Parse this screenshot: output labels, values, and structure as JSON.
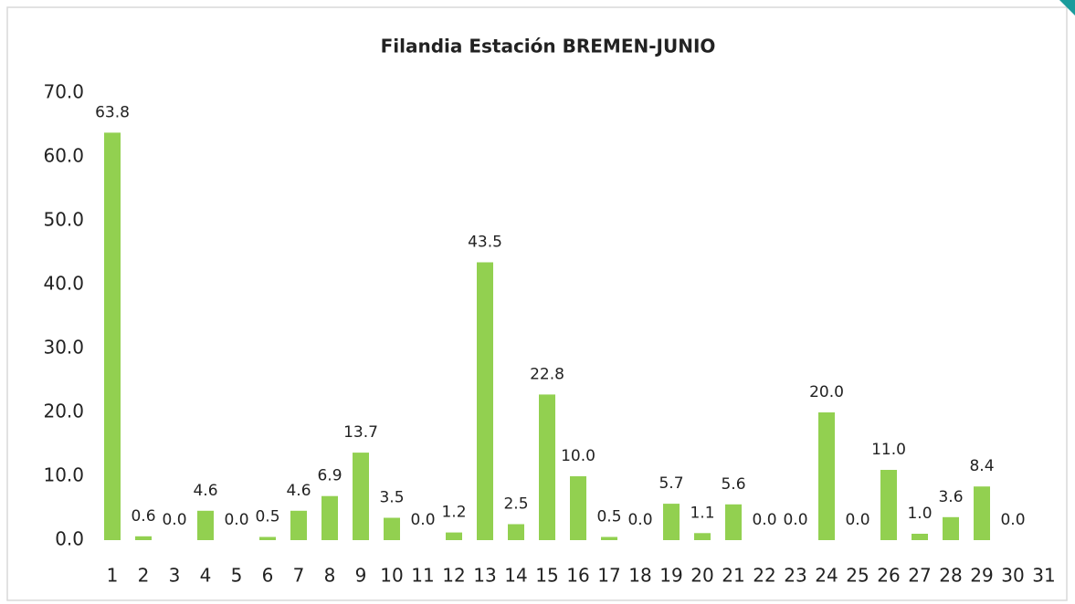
{
  "chart_data": {
    "type": "bar",
    "title": "Filandia Estación BREMEN-JUNIO",
    "categories": [
      "1",
      "2",
      "3",
      "4",
      "5",
      "6",
      "7",
      "8",
      "9",
      "10",
      "11",
      "12",
      "13",
      "14",
      "15",
      "16",
      "17",
      "18",
      "19",
      "20",
      "21",
      "22",
      "23",
      "24",
      "25",
      "26",
      "27",
      "28",
      "29",
      "30",
      "31"
    ],
    "values": [
      63.8,
      0.6,
      0.0,
      4.6,
      0.0,
      0.5,
      4.6,
      6.9,
      13.7,
      3.5,
      0.0,
      1.2,
      43.5,
      2.5,
      22.8,
      10.0,
      0.5,
      0.0,
      5.7,
      1.1,
      5.6,
      0.0,
      0.0,
      20.0,
      0.0,
      11.0,
      1.0,
      3.6,
      8.4,
      0.0,
      null
    ],
    "value_labels": [
      "63.8",
      "0.6",
      "0.0",
      "4.6",
      "0.0",
      "0.5",
      "4.6",
      "6.9",
      "13.7",
      "3.5",
      "0.0",
      "1.2",
      "43.5",
      "2.5",
      "22.8",
      "10.0",
      "0.5",
      "0.0",
      "5.7",
      "1.1",
      "5.6",
      "0.0",
      "0.0",
      "20.0",
      "0.0",
      "11.0",
      "1.0",
      "3.6",
      "8.4",
      "0.0",
      null
    ],
    "color": "#92d050",
    "ylim": [
      0,
      70
    ],
    "yticks": [
      {
        "value": 0,
        "label": "0.0"
      },
      {
        "value": 10,
        "label": "10.0"
      },
      {
        "value": 20,
        "label": "20.0"
      },
      {
        "value": 30,
        "label": "30.0"
      },
      {
        "value": 40,
        "label": "40.0"
      },
      {
        "value": 50,
        "label": "50.0"
      },
      {
        "value": 60,
        "label": "60.0"
      },
      {
        "value": 70,
        "label": "70.0"
      }
    ],
    "grid": false
  }
}
